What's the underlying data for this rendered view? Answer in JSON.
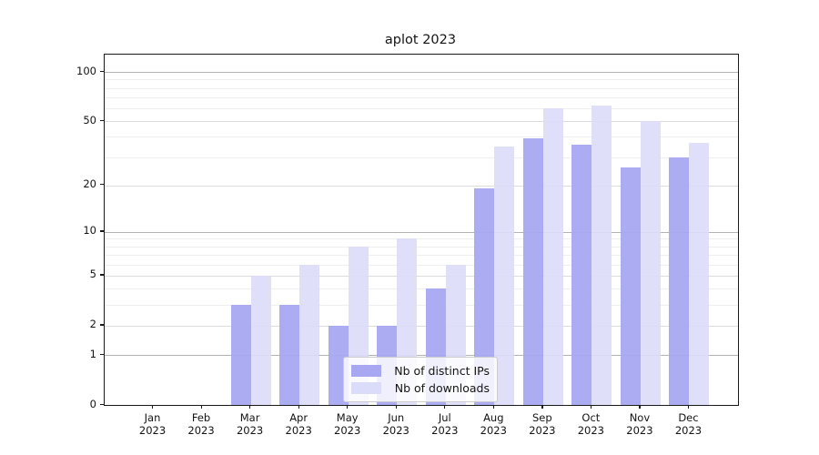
{
  "title": "aplot 2023",
  "chart_data": {
    "type": "bar",
    "title": "aplot 2023",
    "months": [
      "Jan",
      "Feb",
      "Mar",
      "Apr",
      "May",
      "Jun",
      "Jul",
      "Aug",
      "Sep",
      "Oct",
      "Nov",
      "Dec"
    ],
    "year": "2023",
    "series": [
      {
        "name": "Nb of distinct IPs",
        "color": "#a8a8f2",
        "values": [
          0,
          0,
          3,
          3,
          2,
          2,
          4,
          19,
          39,
          36,
          26,
          30
        ]
      },
      {
        "name": "Nb of downloads",
        "color": "#dbdcf9",
        "values": [
          0,
          0,
          5,
          6,
          8,
          9,
          6,
          35,
          60,
          62,
          50,
          37
        ]
      }
    ],
    "yscale": "symlog",
    "y_ticks": [
      100,
      50,
      20,
      10,
      5,
      2,
      1,
      0
    ],
    "ylim": [
      0,
      128
    ],
    "grid": "horizontal-minor-log",
    "gridline_values": [
      1,
      2,
      3,
      4,
      5,
      6,
      7,
      8,
      9,
      10,
      20,
      30,
      40,
      50,
      60,
      70,
      80,
      90,
      100
    ],
    "legend_position": "lower-center",
    "colors": {
      "grid_major": "#b3b3b3",
      "grid_mid": "#dcdcdc",
      "grid_minor": "#efefef",
      "spine": "#1a1a1a",
      "background": "#ffffff"
    }
  }
}
